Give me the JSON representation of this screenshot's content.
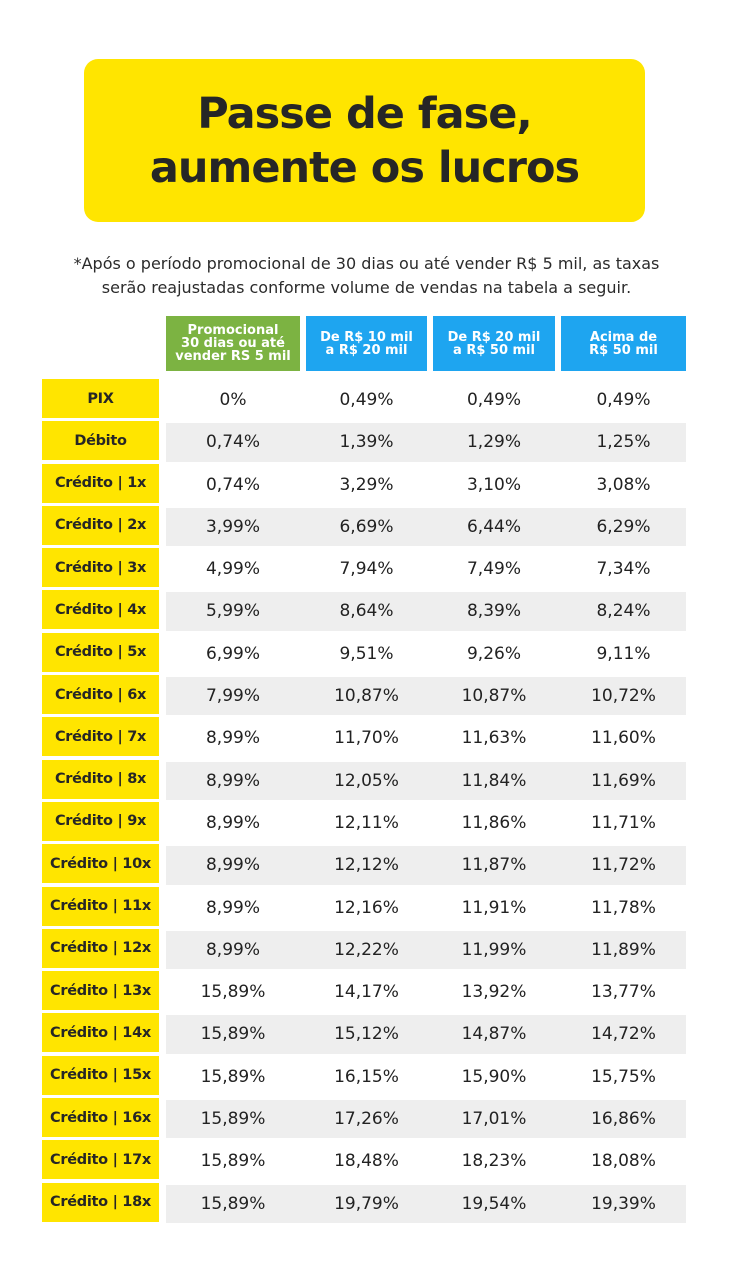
{
  "title": {
    "line1": "Passe de fase,",
    "line2": "aumente os lucros"
  },
  "note": {
    "line1": "*Após o período promocional de 30 dias ou até vender R$ 5 mil, as taxas",
    "line2": "serão reajustadas conforme volume de vendas na tabela a seguir."
  },
  "colors": {
    "yellow": "#ffe500",
    "green": "#7cb342",
    "blue": "#1ea5f0",
    "row_alt": "#eeeeee"
  },
  "headers": [
    {
      "lines": [
        "Promocional",
        "30 dias ou até",
        "vender RS 5 mil"
      ]
    },
    {
      "lines": [
        "De R$ 10 mil",
        "a R$ 20 mil"
      ]
    },
    {
      "lines": [
        "De R$ 20 mil",
        "a R$ 50 mil"
      ]
    },
    {
      "lines": [
        "Acima de",
        "R$ 50 mil"
      ]
    }
  ],
  "rows": [
    {
      "label": "PIX",
      "values": [
        "0%",
        "0,49%",
        "0,49%",
        "0,49%"
      ]
    },
    {
      "label": "Débito",
      "values": [
        "0,74%",
        "1,39%",
        "1,29%",
        "1,25%"
      ]
    },
    {
      "label": "Crédito | 1x",
      "values": [
        "0,74%",
        "3,29%",
        "3,10%",
        "3,08%"
      ]
    },
    {
      "label": "Crédito | 2x",
      "values": [
        "3,99%",
        "6,69%",
        "6,44%",
        "6,29%"
      ]
    },
    {
      "label": "Crédito | 3x",
      "values": [
        "4,99%",
        "7,94%",
        "7,49%",
        "7,34%"
      ]
    },
    {
      "label": "Crédito | 4x",
      "values": [
        "5,99%",
        "8,64%",
        "8,39%",
        "8,24%"
      ]
    },
    {
      "label": "Crédito | 5x",
      "values": [
        "6,99%",
        "9,51%",
        "9,26%",
        "9,11%"
      ]
    },
    {
      "label": "Crédito | 6x",
      "values": [
        "7,99%",
        "10,87%",
        "10,87%",
        "10,72%"
      ]
    },
    {
      "label": "Crédito | 7x",
      "values": [
        "8,99%",
        "11,70%",
        "11,63%",
        "11,60%"
      ]
    },
    {
      "label": "Crédito | 8x",
      "values": [
        "8,99%",
        "12,05%",
        "11,84%",
        "11,69%"
      ]
    },
    {
      "label": "Crédito | 9x",
      "values": [
        "8,99%",
        "12,11%",
        "11,86%",
        "11,71%"
      ]
    },
    {
      "label": "Crédito | 10x",
      "values": [
        "8,99%",
        "12,12%",
        "11,87%",
        "11,72%"
      ]
    },
    {
      "label": "Crédito | 11x",
      "values": [
        "8,99%",
        "12,16%",
        "11,91%",
        "11,78%"
      ]
    },
    {
      "label": "Crédito | 12x",
      "values": [
        "8,99%",
        "12,22%",
        "11,99%",
        "11,89%"
      ]
    },
    {
      "label": "Crédito | 13x",
      "values": [
        "15,89%",
        "14,17%",
        "13,92%",
        "13,77%"
      ]
    },
    {
      "label": "Crédito | 14x",
      "values": [
        "15,89%",
        "15,12%",
        "14,87%",
        "14,72%"
      ]
    },
    {
      "label": "Crédito | 15x",
      "values": [
        "15,89%",
        "16,15%",
        "15,90%",
        "15,75%"
      ]
    },
    {
      "label": "Crédito | 16x",
      "values": [
        "15,89%",
        "17,26%",
        "17,01%",
        "16,86%"
      ]
    },
    {
      "label": "Crédito | 17x",
      "values": [
        "15,89%",
        "18,48%",
        "18,23%",
        "18,08%"
      ]
    },
    {
      "label": "Crédito | 18x",
      "values": [
        "15,89%",
        "19,79%",
        "19,54%",
        "19,39%"
      ]
    }
  ]
}
